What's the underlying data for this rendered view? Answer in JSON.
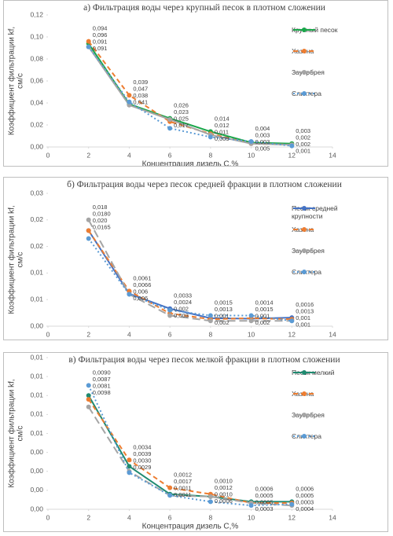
{
  "chart_data": [
    {
      "type": "line",
      "title": "а) Фильтрация воды через крупный песок в плотном сложении",
      "x_label": "Концентрация дизель С,%",
      "y_label": [
        "Коэффициент фильтрации kf,",
        "см/с"
      ],
      "x": [
        2,
        4,
        6,
        8,
        10,
        12
      ],
      "xlim": [
        0,
        14
      ],
      "xticks": [
        0,
        2,
        4,
        6,
        8,
        10,
        12,
        14
      ],
      "ylim": [
        0,
        0.12
      ],
      "yticks": [
        {
          "value": 0,
          "label": "0,00"
        },
        {
          "value": 0.02,
          "label": "0,02"
        },
        {
          "value": 0.04,
          "label": "0,04"
        },
        {
          "value": 0.06,
          "label": "0,06"
        },
        {
          "value": 0.08,
          "label": "0,08"
        },
        {
          "value": 0.1,
          "label": "0,10"
        },
        {
          "value": 0.12,
          "label": "0,12"
        }
      ],
      "legend": "right",
      "series": [
        {
          "name": "Крупный песок",
          "color": "#1aa64a",
          "line_style": "solid",
          "values": [
            0.094,
            0.039,
            0.026,
            0.014,
            0.004,
            0.003
          ],
          "value_labels": [
            "0,094",
            "0,039",
            "0,026",
            "0,014",
            "0,004",
            "0,003"
          ]
        },
        {
          "name": "Хазена",
          "color": "#ed7d31",
          "line_style": "dashed",
          "values": [
            0.096,
            0.047,
            0.023,
            0.012,
            0.003,
            0.002
          ],
          "value_labels": [
            "0,096",
            "0,047",
            "0,023",
            "0,012",
            "0,003",
            "0,002"
          ]
        },
        {
          "name": "Зауэрбрея",
          "color": "#a5a5a5",
          "line_style": "solid",
          "values": [
            0.091,
            0.038,
            0.025,
            0.011,
            0.003,
            0.002
          ],
          "value_labels": [
            "0,091",
            "0,038",
            "0,025",
            "0,011",
            "0,003",
            "0,002"
          ]
        },
        {
          "name": "Слихтера",
          "color": "#5b9bd5",
          "line_style": "dotted",
          "values": [
            0.091,
            0.041,
            0.017,
            0.009,
            0.005,
            0.001
          ],
          "value_labels": [
            "0,091",
            "0,041",
            "0,017",
            "0,009",
            "0,005",
            "0,001"
          ]
        }
      ]
    },
    {
      "type": "line",
      "title": "б) Фильтрация воды через песок средней фракции в плотном сложении",
      "x_label": "Концентрация дизель С,%",
      "y_label": [
        "Коэффициент фильтрации kf,",
        "см/с"
      ],
      "x": [
        2,
        4,
        6,
        8,
        10,
        12
      ],
      "xlim": [
        0,
        14
      ],
      "xticks": [
        0,
        2,
        4,
        6,
        8,
        10,
        12,
        14
      ],
      "ylim": [
        0,
        0.025
      ],
      "yticks": [
        {
          "value": 0,
          "label": "0,00"
        },
        {
          "value": 0.005,
          "label": "0,01"
        },
        {
          "value": 0.01,
          "label": "0,01"
        },
        {
          "value": 0.015,
          "label": "0,02"
        },
        {
          "value": 0.02,
          "label": "0,02"
        },
        {
          "value": 0.025,
          "label": "0,03"
        }
      ],
      "legend": "right",
      "series": [
        {
          "name": "Песок средней крупности",
          "color": "#4472c4",
          "line_style": "solid",
          "values": [
            0.018,
            0.0061,
            0.0033,
            0.0015,
            0.0014,
            0.0016
          ],
          "value_labels": [
            "0,018",
            "0,0061",
            "0,0033",
            "0,0015",
            "0,0014",
            "0,0016"
          ]
        },
        {
          "name": "Хазена",
          "color": "#ed7d31",
          "line_style": "dashed",
          "values": [
            0.018,
            0.0066,
            0.0024,
            0.0013,
            0.0015,
            0.0013
          ],
          "value_labels": [
            "0,0180",
            "0,0066",
            "0,0024",
            "0,0013",
            "0,0015",
            "0,0013"
          ]
        },
        {
          "name": "Зауэрбрея",
          "color": "#a5a5a5",
          "line_style": "longdash",
          "values": [
            0.02,
            0.006,
            0.002,
            0.001,
            0.001,
            0.001
          ],
          "value_labels": [
            "0,020",
            "0,006",
            "0,002",
            "0,001",
            "0,001",
            "0,001"
          ]
        },
        {
          "name": "Слихтера",
          "color": "#5b9bd5",
          "line_style": "dotted",
          "values": [
            0.0165,
            0.006,
            0.003,
            0.002,
            0.002,
            0.001
          ],
          "value_labels": [
            "0,0165",
            "0,006",
            "0,003",
            "0,002",
            "0,002",
            "0,001"
          ]
        }
      ]
    },
    {
      "type": "line",
      "title": "в) Фильтрация воды через песок мелкой фракции в плотном сложении",
      "x_label": "Концентрация дизель С,%",
      "y_label": [
        "Коэффициент фильтрации kf,",
        "см/с"
      ],
      "x": [
        2,
        4,
        6,
        8,
        10,
        12
      ],
      "xlim": [
        0,
        14
      ],
      "xticks": [
        0,
        2,
        4,
        6,
        8,
        10,
        12,
        14
      ],
      "ylim": [
        0,
        0.012
      ],
      "yticks": [
        {
          "value": 0,
          "label": "0,00"
        },
        {
          "value": 0.0015,
          "label": "0,00"
        },
        {
          "value": 0.003,
          "label": "0,00"
        },
        {
          "value": 0.0045,
          "label": "0,00"
        },
        {
          "value": 0.006,
          "label": "0,01"
        },
        {
          "value": 0.0075,
          "label": "0,01"
        },
        {
          "value": 0.009,
          "label": "0,01"
        },
        {
          "value": 0.0105,
          "label": "0,01"
        },
        {
          "value": 0.012,
          "label": "0,01"
        }
      ],
      "legend": "right",
      "series": [
        {
          "name": "Песок мелкий",
          "color": "#1f8a70",
          "line_style": "solid",
          "values": [
            0.009,
            0.0034,
            0.0012,
            0.001,
            0.0006,
            0.0006
          ],
          "value_labels": [
            "0,0090",
            "0,0034",
            "0,0012",
            "0,0010",
            "0,0006",
            "0,0006"
          ]
        },
        {
          "name": "Хазена",
          "color": "#ed7d31",
          "line_style": "dashed",
          "values": [
            0.0087,
            0.0039,
            0.0017,
            0.0012,
            0.0005,
            0.0005
          ],
          "value_labels": [
            "0,0087",
            "0,0039",
            "0,0017",
            "0,0012",
            "0,0005",
            "0,0005"
          ]
        },
        {
          "name": "Зауэрбрея",
          "color": "#a5a5a5",
          "line_style": "longdash",
          "values": [
            0.0081,
            0.003,
            0.0011,
            0.001,
            0.0005,
            0.0003
          ],
          "value_labels": [
            "0,0081",
            "0,0030",
            "0,0011",
            "0,0010",
            "0,0005",
            "0,0003"
          ]
        },
        {
          "name": "Слихтера",
          "color": "#5b9bd5",
          "line_style": "dotted",
          "values": [
            0.0098,
            0.0029,
            0.0011,
            0.0006,
            0.0003,
            0.0004
          ],
          "value_labels": [
            "0,0098",
            "0,0029",
            "0,0011",
            "0,0006",
            "0,0003",
            "0,0004"
          ]
        }
      ]
    }
  ]
}
